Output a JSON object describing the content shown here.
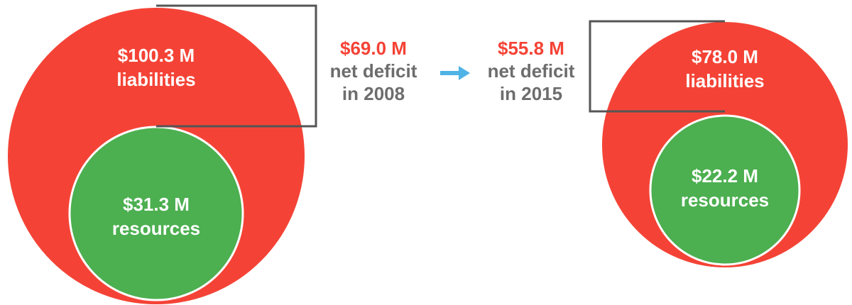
{
  "left": {
    "liabilities": {
      "amount": "$100.3 M",
      "label": "liabilities"
    },
    "resources": {
      "amount": "$31.3 M",
      "label": "resources"
    },
    "deficit": {
      "amount": "$69.0 M",
      "line1": "net deficit",
      "line2": "in 2008"
    }
  },
  "right": {
    "liabilities": {
      "amount": "$78.0 M",
      "label": "liabilities"
    },
    "resources": {
      "amount": "$22.2 M",
      "label": "resources"
    },
    "deficit": {
      "amount": "$55.8 M",
      "line1": "net deficit",
      "line2": "in 2015"
    }
  }
}
